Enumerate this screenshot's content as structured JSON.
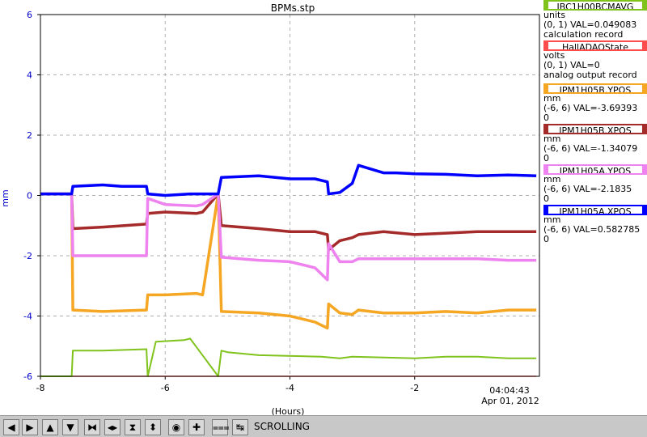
{
  "chart_data": {
    "type": "line",
    "title": "BPMs.stp",
    "xlabel": "(Hours)",
    "ylabel": "mm",
    "xlim": [
      -8,
      0
    ],
    "ylim": [
      -6,
      6
    ],
    "x_ticks": [
      "-8",
      "-6",
      "-4",
      "-2"
    ],
    "y_ticks": [
      "-6",
      "-4",
      "-2",
      "0",
      "2",
      "4",
      "6"
    ],
    "grid": true,
    "time_label": "04:04:43",
    "date_label": "Apr 01, 2012",
    "series": [
      {
        "name": "IPM1H05A.XPOS",
        "color": "#0000ff",
        "x": [
          -8,
          -7.5,
          -7.48,
          -7,
          -6.7,
          -6.3,
          -6.28,
          -6.0,
          -5.6,
          -5.4,
          -5.15,
          -5.1,
          -4.5,
          -4.0,
          -3.6,
          -3.4,
          -3.38,
          -3.2,
          -3.0,
          -2.9,
          -2.5,
          -2.3,
          -2.0,
          -1.5,
          -1.0,
          -0.5,
          -0.05
        ],
        "y": [
          0.05,
          0.05,
          0.3,
          0.35,
          0.3,
          0.3,
          0.05,
          0.0,
          0.05,
          0.05,
          0.05,
          0.6,
          0.65,
          0.55,
          0.55,
          0.45,
          0.05,
          0.1,
          0.4,
          1.0,
          0.75,
          0.75,
          0.72,
          0.7,
          0.65,
          0.68,
          0.65
        ]
      },
      {
        "name": "IPM1H05A.YPOS",
        "color": "#ee82ee",
        "x": [
          -8,
          -7.5,
          -7.48,
          -7,
          -6.3,
          -6.28,
          -6.0,
          -5.5,
          -5.4,
          -5.15,
          -5.1,
          -4.5,
          -4.0,
          -3.6,
          -3.4,
          -3.38,
          -3.2,
          -3.0,
          -2.9,
          -2.5,
          -2.0,
          -1.5,
          -1.0,
          -0.5,
          -0.05
        ],
        "y": [
          0.05,
          0.05,
          -2.0,
          -2.0,
          -2.0,
          -0.1,
          -0.3,
          -0.35,
          -0.3,
          0.05,
          -2.05,
          -2.15,
          -2.2,
          -2.4,
          -2.8,
          -1.6,
          -2.2,
          -2.2,
          -2.1,
          -2.1,
          -2.1,
          -2.1,
          -2.1,
          -2.15,
          -2.15
        ]
      },
      {
        "name": "IPM1H05B.XPOS",
        "color": "#a52a2a",
        "x": [
          -8,
          -7.5,
          -7.48,
          -7,
          -6.3,
          -6.28,
          -6.0,
          -5.5,
          -5.4,
          -5.15,
          -5.1,
          -4.5,
          -4.0,
          -3.6,
          -3.4,
          -3.38,
          -3.2,
          -3.0,
          -2.9,
          -2.5,
          -2.0,
          -1.5,
          -1.0,
          -0.5,
          -0.05
        ],
        "y": [
          0.05,
          0.05,
          -1.1,
          -1.05,
          -0.95,
          -0.6,
          -0.55,
          -0.6,
          -0.55,
          0.05,
          -1.0,
          -1.1,
          -1.2,
          -1.2,
          -1.3,
          -1.8,
          -1.5,
          -1.4,
          -1.3,
          -1.2,
          -1.3,
          -1.25,
          -1.2,
          -1.2,
          -1.2
        ]
      },
      {
        "name": "IPM1H05B.YPOS",
        "color": "#f5a623",
        "x": [
          -8,
          -7.5,
          -7.48,
          -7,
          -6.3,
          -6.28,
          -6.0,
          -5.5,
          -5.4,
          -5.15,
          -5.1,
          -4.5,
          -4.0,
          -3.6,
          -3.4,
          -3.38,
          -3.2,
          -3.0,
          -2.9,
          -2.5,
          -2.0,
          -1.5,
          -1.0,
          -0.5,
          -0.05
        ],
        "y": [
          0.05,
          0.05,
          -3.8,
          -3.85,
          -3.8,
          -3.3,
          -3.3,
          -3.25,
          -3.3,
          0.05,
          -3.85,
          -3.9,
          -4.0,
          -4.2,
          -4.4,
          -3.6,
          -3.9,
          -3.95,
          -3.8,
          -3.9,
          -3.9,
          -3.85,
          -3.9,
          -3.8,
          -3.8
        ]
      },
      {
        "name": "IBC1H00BCMAVG",
        "color": "#7fc31c",
        "x": [
          -8,
          -7.5,
          -7.48,
          -7,
          -6.3,
          -6.28,
          -6.15,
          -5.7,
          -5.6,
          -5.15,
          -5.1,
          -5.0,
          -4.5,
          -3.5,
          -3.2,
          -3.0,
          -2.0,
          -1.5,
          -1.0,
          -0.5,
          -0.05
        ],
        "y": [
          -6,
          -6,
          -5.15,
          -5.15,
          -5.1,
          -6,
          -4.85,
          -4.8,
          -4.75,
          -6,
          -5.15,
          -5.2,
          -5.3,
          -5.35,
          -5.4,
          -5.35,
          -5.4,
          -5.35,
          -5.35,
          -5.4,
          -5.4
        ]
      },
      {
        "name": "HallADAQState",
        "color": "#ff4c4c",
        "x": [
          -8,
          -0.05
        ],
        "y": [
          -6,
          -6
        ]
      }
    ]
  },
  "legend": [
    {
      "name": "IBC1H00BCMAVG",
      "units": "units",
      "val": "(0, 1) VAL=0.049083",
      "desc": "calculation record",
      "color": "#7fc31c"
    },
    {
      "name": "HallADAQState",
      "units": "volts",
      "val": "(0, 1) VAL=0",
      "desc": "analog output record",
      "color": "#ff4c4c"
    },
    {
      "name": "IPM1H05B.YPOS",
      "units": "mm",
      "val": "(-6, 6) VAL=-3.69393",
      "desc": "0",
      "color": "#f5a623"
    },
    {
      "name": "IPM1H05B.XPOS",
      "units": "mm",
      "val": "(-6, 6) VAL=-1.34079",
      "desc": "0",
      "color": "#a52a2a"
    },
    {
      "name": "IPM1H05A.YPOS",
      "units": "mm",
      "val": "(-6, 6) VAL=-2.1835",
      "desc": "0",
      "color": "#ee82ee"
    },
    {
      "name": "IPM1H05A.XPOS",
      "units": "mm",
      "val": "(-6, 6) VAL=0.582785",
      "desc": "0",
      "color": "#0000ff"
    }
  ],
  "toolbar": {
    "status": "SCROLLING",
    "buttons": [
      {
        "icon": "arrow-left-icon",
        "glyph": "◀"
      },
      {
        "icon": "arrow-right-icon",
        "glyph": "▶"
      },
      {
        "icon": "arrow-up-icon",
        "glyph": "▲"
      },
      {
        "icon": "arrow-down-icon",
        "glyph": "▼"
      },
      {
        "icon": "zoom-in-x-icon",
        "glyph": "⧓"
      },
      {
        "icon": "zoom-out-x-icon",
        "glyph": "◀▶"
      },
      {
        "icon": "zoom-in-y-icon",
        "glyph": "⧗"
      },
      {
        "icon": "zoom-out-y-icon",
        "glyph": "⬍"
      },
      {
        "icon": "autoscale-icon",
        "glyph": "◉"
      },
      {
        "icon": "crosshair-icon",
        "glyph": "✚"
      },
      {
        "icon": "config-icon",
        "glyph": "⩶"
      },
      {
        "icon": "scroll-mode-icon",
        "glyph": "↹"
      }
    ]
  }
}
